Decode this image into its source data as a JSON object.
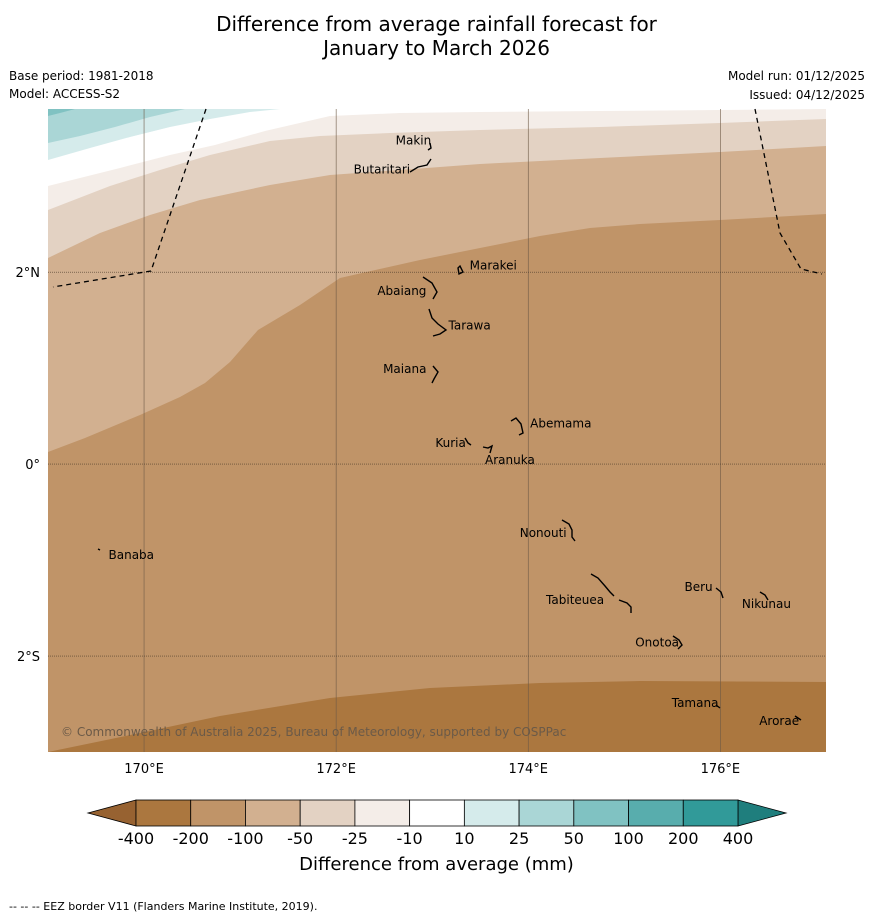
{
  "title": {
    "line1": "Difference from average rainfall forecast for",
    "line2": "January to March 2026"
  },
  "meta": {
    "base_period": "Base period: 1981-2018",
    "model": "Model: ACCESS-S2",
    "model_run": "Model run: 01/12/2025",
    "issued": "Issued: 04/12/2025"
  },
  "map": {
    "lon_range": [
      169,
      177.1
    ],
    "lat_range": [
      -3.0,
      3.7
    ],
    "lon_ticks": [
      {
        "value": 170,
        "label": "170°E"
      },
      {
        "value": 172,
        "label": "172°E"
      },
      {
        "value": 174,
        "label": "174°E"
      },
      {
        "value": 176,
        "label": "176°E"
      }
    ],
    "lat_ticks": [
      {
        "value": 2,
        "label": "2°N"
      },
      {
        "value": 0,
        "label": "0°"
      },
      {
        "value": -2,
        "label": "2°S"
      }
    ],
    "copyright": "© Commonwealth of Australia 2025, Bureau of Meteorology, supported by COSPPac",
    "places": [
      {
        "name": "Makin",
        "lon": 172.99,
        "lat": 3.33,
        "anchor": "end"
      },
      {
        "name": "Butaritari",
        "lon": 172.77,
        "lat": 3.03,
        "anchor": "end"
      },
      {
        "name": "Marakei",
        "lon": 173.39,
        "lat": 2.03,
        "anchor": "start"
      },
      {
        "name": "Abaiang",
        "lon": 172.94,
        "lat": 1.76,
        "anchor": "end"
      },
      {
        "name": "Tarawa",
        "lon": 173.17,
        "lat": 1.4,
        "anchor": "start"
      },
      {
        "name": "Maiana",
        "lon": 172.94,
        "lat": 0.95,
        "anchor": "end"
      },
      {
        "name": "Abemama",
        "lon": 174.02,
        "lat": 0.38,
        "anchor": "start"
      },
      {
        "name": "Kuria",
        "lon": 173.35,
        "lat": 0.18,
        "anchor": "end"
      },
      {
        "name": "Aranuka",
        "lon": 173.55,
        "lat": 0.0,
        "anchor": "start"
      },
      {
        "name": "Nonouti",
        "lon": 174.4,
        "lat": -0.76,
        "anchor": "end"
      },
      {
        "name": "Banaba",
        "lon": 169.63,
        "lat": -0.99,
        "anchor": "start"
      },
      {
        "name": "Beru",
        "lon": 175.92,
        "lat": -1.32,
        "anchor": "end"
      },
      {
        "name": "Tabiteuea",
        "lon": 174.79,
        "lat": -1.46,
        "anchor": "end"
      },
      {
        "name": "Nikunau",
        "lon": 176.48,
        "lat": -1.5,
        "anchor": "middle"
      },
      {
        "name": "Onotoa",
        "lon": 175.57,
        "lat": -1.9,
        "anchor": "end"
      },
      {
        "name": "Tamana",
        "lon": 175.98,
        "lat": -2.53,
        "anchor": "end"
      },
      {
        "name": "Arorae",
        "lon": 176.82,
        "lat": -2.72,
        "anchor": "end"
      }
    ]
  },
  "colorbar": {
    "labels": [
      "-400",
      "-200",
      "-100",
      "-50",
      "-25",
      "-10",
      "10",
      "25",
      "50",
      "100",
      "200",
      "400"
    ],
    "colors": [
      "#ab773f",
      "#c09468",
      "#d2b090",
      "#e3d2c3",
      "#f4ede8",
      "#ffffff",
      "#d5ebeb",
      "#aad6d6",
      "#80c2c2",
      "#58adad",
      "#319a99"
    ],
    "under_color": "#976231",
    "over_color": "#1f7e7d",
    "title": "Difference from average (mm)"
  },
  "footer": "--  --  -- EEZ border V11 (Flanders Marine Institute, 2019)."
}
